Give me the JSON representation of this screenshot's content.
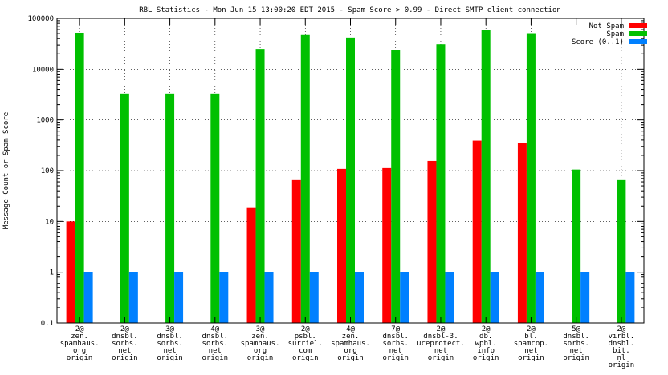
{
  "chart_data": {
    "type": "bar",
    "title": "RBL Statistics - Mon Jun 15 13:00:20 EDT 2015 - Spam Score > 0.99 - Direct SMTP client connection",
    "xlabel": "",
    "ylabel": "Message Count or Spam Score",
    "yscale": "log",
    "ylim": [
      0.1,
      100000
    ],
    "yticks": [
      {
        "value": 0.1,
        "label": "0.1"
      },
      {
        "value": 1,
        "label": "1"
      },
      {
        "value": 10,
        "label": "10"
      },
      {
        "value": 100,
        "label": "100"
      },
      {
        "value": 1000,
        "label": "1000"
      },
      {
        "value": 10000,
        "label": "10000"
      },
      {
        "value": 100000,
        "label": "100000"
      }
    ],
    "grid": true,
    "legend_position": "top-right",
    "categories": [
      [
        "2@",
        "zen.",
        "spamhaus.",
        "org",
        "origin"
      ],
      [
        "2@",
        "dnsbl.",
        "sorbs.",
        "net",
        "origin"
      ],
      [
        "3@",
        "dnsbl.",
        "sorbs.",
        "net",
        "origin"
      ],
      [
        "4@",
        "dnsbl.",
        "sorbs.",
        "net",
        "origin"
      ],
      [
        "3@",
        "zen.",
        "spamhaus.",
        "org",
        "origin"
      ],
      [
        "2@",
        "psbl.",
        "surriel.",
        "com",
        "origin"
      ],
      [
        "4@",
        "zen.",
        "spamhaus.",
        "org",
        "origin"
      ],
      [
        "7@",
        "dnsbl.",
        "sorbs.",
        "net",
        "origin"
      ],
      [
        "2@",
        "dnsbl-3.",
        "uceprotect.",
        "net",
        "origin"
      ],
      [
        "2@",
        "db.",
        "wpbl.",
        "info",
        "origin"
      ],
      [
        "2@",
        "bl.",
        "spamcop.",
        "net",
        "origin"
      ],
      [
        "5@",
        "dnsbl.",
        "sorbs.",
        "net",
        "origin"
      ],
      [
        "2@",
        "virbl.",
        "dnsbl.",
        "bit.",
        "nl",
        "origin"
      ]
    ],
    "series": [
      {
        "name": "Not Spam",
        "color": "#ff0000",
        "values": [
          10,
          null,
          null,
          null,
          19,
          65,
          108,
          112,
          155,
          390,
          350,
          null,
          null
        ]
      },
      {
        "name": "Spam",
        "color": "#00c000",
        "values": [
          52000,
          3300,
          3300,
          3300,
          25000,
          47000,
          42000,
          24000,
          31000,
          58000,
          51000,
          105,
          65
        ]
      },
      {
        "name": "Score (0..1)",
        "color": "#0080ff",
        "values": [
          1,
          1,
          1,
          1,
          1,
          1,
          1,
          1,
          1,
          1,
          1,
          1,
          1
        ]
      }
    ]
  }
}
